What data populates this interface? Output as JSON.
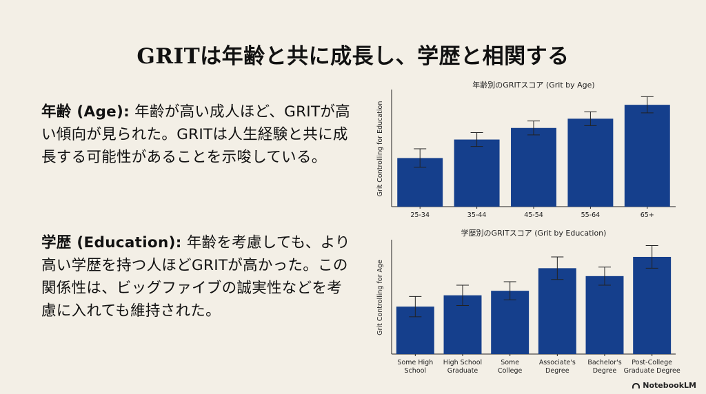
{
  "title": "GRITは年齢と共に成長し、学歴と相関する",
  "age_paragraph": {
    "heading": "年齢 (Age):",
    "body": " 年齢が高い成人ほど、GRITが高い傾向が見られた。GRITは人生経験と共に成長する可能性があることを示唆している。"
  },
  "education_paragraph": {
    "heading": "学歴 (Education):",
    "body": " 年齢を考慮しても、より高い学歴を持つ人ほどGRITが高かった。この関係性は、ビッグファイブの誠実性などを考慮に入れても維持された。"
  },
  "chart_data": [
    {
      "type": "bar",
      "title": "年齢別のGRITスコア (Grit by Age)",
      "ylabel": "Grit Controlling for Education",
      "xlabel": "",
      "categories": [
        "25-34",
        "35-44",
        "45-54",
        "55-64",
        "65+"
      ],
      "values": [
        3.42,
        3.58,
        3.68,
        3.76,
        3.88
      ],
      "error": [
        0.08,
        0.06,
        0.06,
        0.06,
        0.07
      ],
      "ylim": [
        3.0,
        4.0
      ],
      "grid": false,
      "color": "#153f8c"
    },
    {
      "type": "bar",
      "title": "学歴別のGRITスコア (Grit by Education)",
      "ylabel": "Grit Controlling for Age",
      "xlabel": "",
      "categories": [
        "Some High School",
        "High School Graduate",
        "Some College",
        "Associate's Degree",
        "Bachelor's Degree",
        "Post-College Graduate Degree"
      ],
      "category_lines": [
        [
          "Some High",
          "School"
        ],
        [
          "High School",
          "Graduate"
        ],
        [
          "Some",
          "College"
        ],
        [
          "Associate's",
          "Degree"
        ],
        [
          "Bachelor's",
          "Degree"
        ],
        [
          "Post-College",
          "Graduate Degree"
        ]
      ],
      "values": [
        3.42,
        3.52,
        3.56,
        3.76,
        3.69,
        3.86
      ],
      "error": [
        0.09,
        0.09,
        0.08,
        0.1,
        0.08,
        0.1
      ],
      "ylim": [
        3.0,
        4.0
      ],
      "grid": false,
      "color": "#153f8c"
    }
  ],
  "brand": "NotebookLM"
}
